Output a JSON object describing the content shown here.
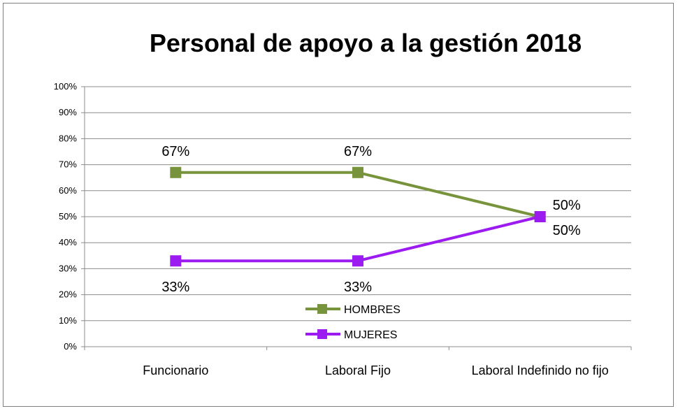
{
  "chart_data": {
    "type": "line",
    "title": "Personal de apoyo a la gestión 2018",
    "xlabel": "",
    "ylabel": "",
    "categories": [
      "Funcionario",
      "Laboral Fijo",
      "Laboral Indefinido no fijo"
    ],
    "ylim": [
      0,
      100
    ],
    "yticks": [
      "0%",
      "10%",
      "20%",
      "30%",
      "40%",
      "50%",
      "60%",
      "70%",
      "80%",
      "90%",
      "100%"
    ],
    "grid": true,
    "legend_position": "inside-bottom-center",
    "series": [
      {
        "name": "HOMBRES",
        "values": [
          67,
          67,
          50
        ],
        "labels": [
          "67%",
          "67%",
          "50%"
        ],
        "color": "#77933c",
        "marker": "square"
      },
      {
        "name": "MUJERES",
        "values": [
          33,
          33,
          50
        ],
        "labels": [
          "33%",
          "33%",
          "50%"
        ],
        "color": "#9b1bf0",
        "marker": "square"
      }
    ]
  }
}
